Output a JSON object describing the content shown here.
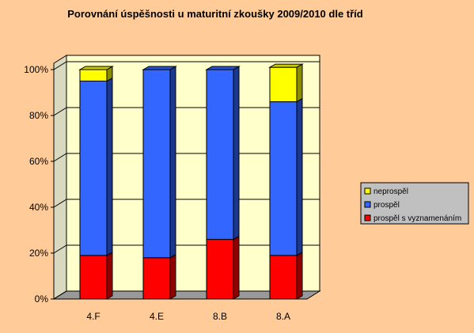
{
  "chart_data": {
    "type": "bar",
    "stacked": true,
    "three_d": true,
    "title": "Porovnání úspěšnosti u maturitní zkoušky 2009/2010 dle tříd",
    "categories": [
      "4.F",
      "4.E",
      "8.B",
      "8.A"
    ],
    "y_ticks": [
      "0%",
      "20%",
      "40%",
      "60%",
      "80%",
      "100%"
    ],
    "ylim": [
      0,
      100
    ],
    "grid": true,
    "legend_position": "right",
    "series": [
      {
        "name": "prospěl s vyznamenáním",
        "color": "#FF0000",
        "values": [
          19,
          18,
          26,
          19
        ]
      },
      {
        "name": "prospěl",
        "color": "#3366FF",
        "values": [
          76,
          82,
          74,
          67
        ]
      },
      {
        "name": "neprospěl",
        "color": "#FFFF00",
        "values": [
          5,
          0,
          0,
          15
        ]
      }
    ],
    "legend_order": [
      "neprospěl",
      "prospěl",
      "prospěl s vyznamenáním"
    ],
    "colors": {
      "background": "#FFCC99",
      "wall": "#FFFFCC",
      "floor": "#999999",
      "legend_bg": "#C0C0C0"
    }
  }
}
